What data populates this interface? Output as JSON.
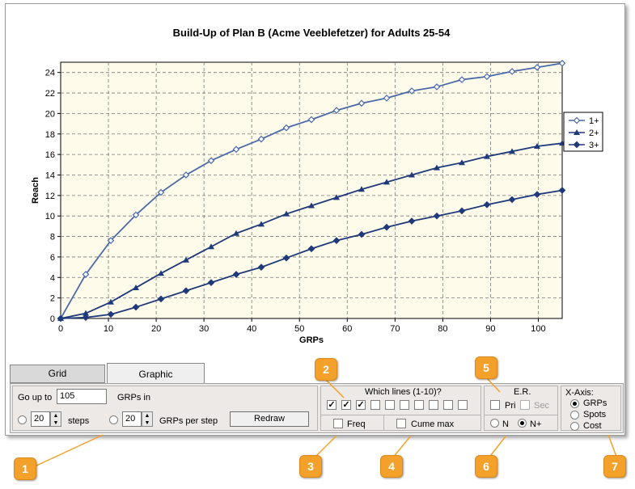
{
  "tabs": {
    "grid": "Grid",
    "graphic": "Graphic"
  },
  "controls": {
    "go_up_to_label": "Go up to",
    "go_up_to_value": "105",
    "grps_in_label": "GRPs in",
    "steps_value": "20",
    "steps_label": "steps",
    "grps_per_step_value": "20",
    "grps_per_step_label": "GRPs per step",
    "redraw_label": "Redraw",
    "which_lines_label": "Which lines (1-10)?",
    "which_lines_checked": [
      true,
      true,
      true,
      false,
      false,
      false,
      false,
      false,
      false,
      false
    ],
    "freq_label": "Freq",
    "cume_max_label": "Cume max",
    "er_label": "E.R.",
    "pri_label": "Pri",
    "sec_label": "Sec",
    "n_label": "N",
    "nplus_label": "N+",
    "xaxis_label": "X-Axis:",
    "xaxis_grps": "GRPs",
    "xaxis_spots": "Spots",
    "xaxis_cost": "Cost"
  },
  "badges": [
    "1",
    "2",
    "3",
    "4",
    "5",
    "6",
    "7"
  ],
  "colors": {
    "line_color": "#1f3a7a",
    "line1_color": "#4a6aa8",
    "plot_bg": "#fffbea",
    "badge": "#f3a12b"
  },
  "chart_data": {
    "type": "line",
    "title": "Build-Up of Plan B (Acme Veeblefetzer) for Adults 25-54",
    "xlabel": "GRPs",
    "ylabel": "Reach",
    "xlim": [
      0,
      105
    ],
    "ylim": [
      0,
      25
    ],
    "xticks": [
      0,
      10,
      20,
      30,
      40,
      50,
      60,
      70,
      80,
      90,
      100
    ],
    "yticks": [
      0,
      2,
      4,
      6,
      8,
      10,
      12,
      14,
      16,
      18,
      20,
      22,
      24
    ],
    "grid": true,
    "legend_position": "right",
    "x": [
      0,
      5.25,
      10.5,
      15.75,
      21,
      26.25,
      31.5,
      36.75,
      42,
      47.25,
      52.5,
      57.75,
      63,
      68.25,
      73.5,
      78.75,
      84,
      89.25,
      94.5,
      99.75,
      105
    ],
    "series": [
      {
        "name": "1+",
        "marker": "diamond-open",
        "values": [
          0,
          4.3,
          7.6,
          10.1,
          12.3,
          14.0,
          15.4,
          16.5,
          17.5,
          18.6,
          19.4,
          20.3,
          21.0,
          21.5,
          22.2,
          22.6,
          23.3,
          23.6,
          24.1,
          24.5,
          24.9
        ]
      },
      {
        "name": "2+",
        "marker": "triangle",
        "values": [
          0,
          0.5,
          1.6,
          3.0,
          4.4,
          5.7,
          7.0,
          8.3,
          9.2,
          10.2,
          11.0,
          11.8,
          12.6,
          13.3,
          14.0,
          14.7,
          15.2,
          15.8,
          16.3,
          16.8,
          17.1
        ]
      },
      {
        "name": "3+",
        "marker": "diamond",
        "values": [
          0,
          0.1,
          0.4,
          1.1,
          1.9,
          2.7,
          3.5,
          4.3,
          5.0,
          5.9,
          6.8,
          7.6,
          8.2,
          8.9,
          9.5,
          10.0,
          10.5,
          11.1,
          11.6,
          12.1,
          12.5
        ]
      }
    ]
  }
}
